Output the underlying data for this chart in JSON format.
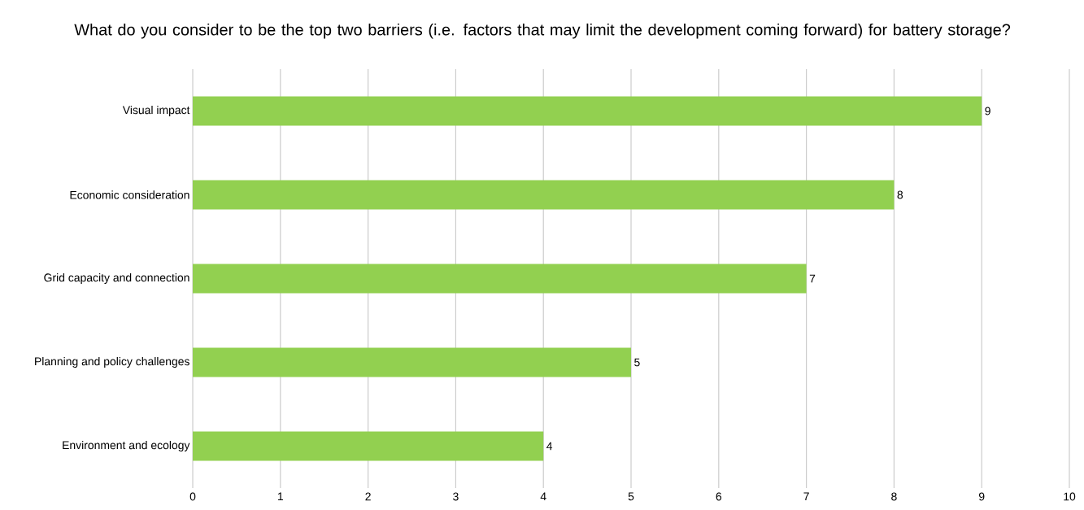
{
  "chart_data": {
    "type": "bar",
    "orientation": "horizontal",
    "title": "What do you consider to be the top two barriers (i.e. factors that may limit the development coming forward) for battery storage?",
    "categories": [
      "Visual impact",
      "Economic consideration",
      "Grid capacity and connection",
      "Planning and policy challenges",
      "Environment and ecology"
    ],
    "values": [
      9,
      8,
      7,
      5,
      4
    ],
    "color": "#92d050",
    "xlim": [
      0,
      10
    ],
    "xticks": [
      0,
      1,
      2,
      3,
      4,
      5,
      6,
      7,
      8,
      9,
      10
    ],
    "grid": "x",
    "data_labels": true
  }
}
